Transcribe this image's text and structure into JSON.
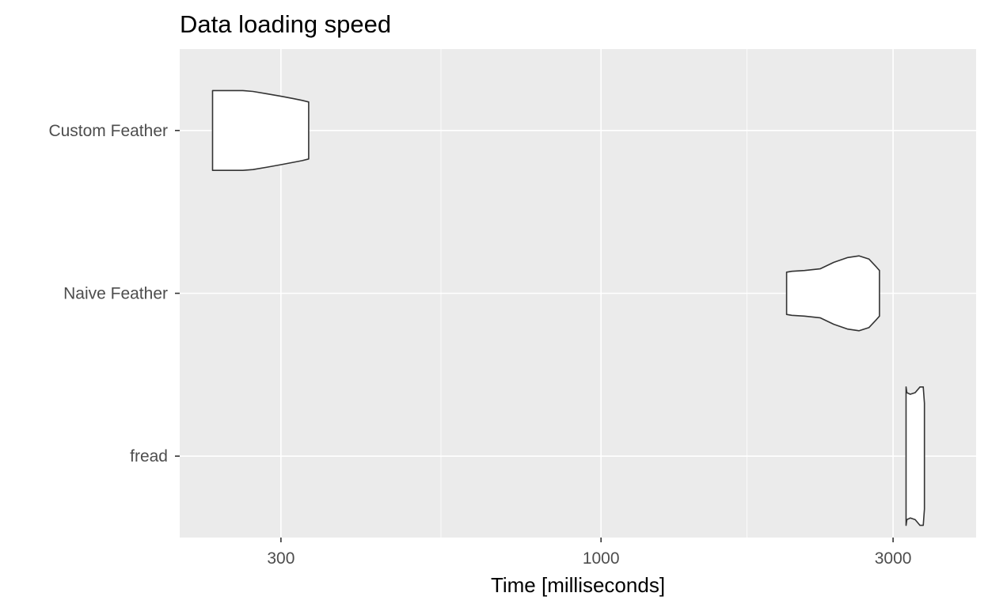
{
  "chart_data": {
    "type": "violin",
    "title": "Data loading speed",
    "xlabel": "Time [milliseconds]",
    "ylabel": "",
    "x_scale": "log10",
    "xlim": [
      205,
      4100
    ],
    "x_ticks": [
      300,
      1000,
      3000
    ],
    "x_tick_labels": [
      "300",
      "1000",
      "3000"
    ],
    "x_minor_ticks": [
      547.7,
      1732.1
    ],
    "categories": [
      "Custom Feather",
      "Naive Feather",
      "fread"
    ],
    "series": [
      {
        "category": "Custom Feather",
        "profile": [
          [
            232,
            0.49
          ],
          [
            238,
            0.49
          ],
          [
            250,
            0.49
          ],
          [
            260,
            0.49
          ],
          [
            270,
            0.48
          ],
          [
            285,
            0.45
          ],
          [
            300,
            0.42
          ],
          [
            315,
            0.39
          ],
          [
            325,
            0.37
          ],
          [
            333,
            0.35
          ]
        ]
      },
      {
        "category": "Naive Feather",
        "profile": [
          [
            2010,
            0.26
          ],
          [
            2050,
            0.27
          ],
          [
            2150,
            0.28
          ],
          [
            2280,
            0.3
          ],
          [
            2400,
            0.38
          ],
          [
            2530,
            0.44
          ],
          [
            2640,
            0.46
          ],
          [
            2740,
            0.42
          ],
          [
            2820,
            0.32
          ],
          [
            2850,
            0.28
          ]
        ]
      },
      {
        "category": "fread",
        "profile": [
          [
            3150,
            0.85
          ],
          [
            3160,
            0.78
          ],
          [
            3200,
            0.76
          ],
          [
            3260,
            0.78
          ],
          [
            3320,
            0.85
          ],
          [
            3360,
            0.85
          ],
          [
            3375,
            0.65
          ]
        ]
      }
    ],
    "grid": true,
    "legend": "none"
  }
}
